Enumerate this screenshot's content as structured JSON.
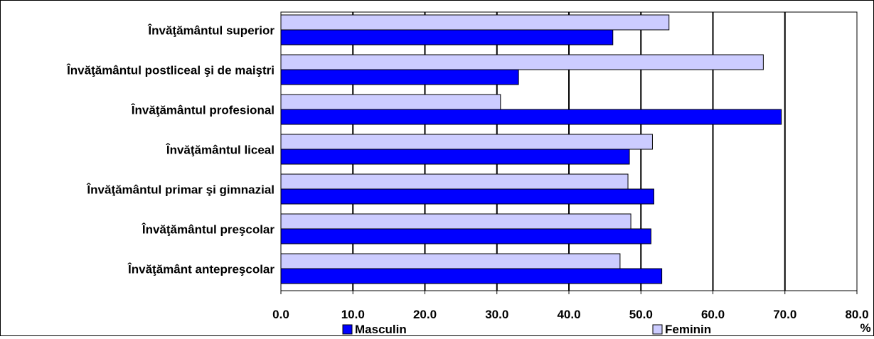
{
  "chart_data": {
    "type": "bar",
    "orientation": "horizontal",
    "categories": [
      "Învăţământul superior",
      "Învăţământul postliceal şi de maiştri",
      "Învăţământul profesional ",
      "Învăţământul liceal",
      "Învăţământul primar şi gimnazial",
      "Învăţământul preşcolar",
      "Învăţământ antepreşcolar"
    ],
    "series": [
      {
        "name": "Masculin",
        "color": "#0000ff",
        "values": [
          46.1,
          33.0,
          69.5,
          48.4,
          51.8,
          51.4,
          52.9
        ]
      },
      {
        "name": "Feminin",
        "color": "#ccccff",
        "values": [
          53.9,
          67.0,
          30.5,
          51.6,
          48.2,
          48.6,
          47.1
        ]
      }
    ],
    "xlim": [
      0,
      80
    ],
    "xticks": [
      "0.0",
      "10.0",
      "20.0",
      "30.0",
      "40.0",
      "50.0",
      "60.0",
      "70.0",
      "80.0"
    ],
    "xunit": "%",
    "grid": "vertical",
    "legend_position": "bottom"
  }
}
